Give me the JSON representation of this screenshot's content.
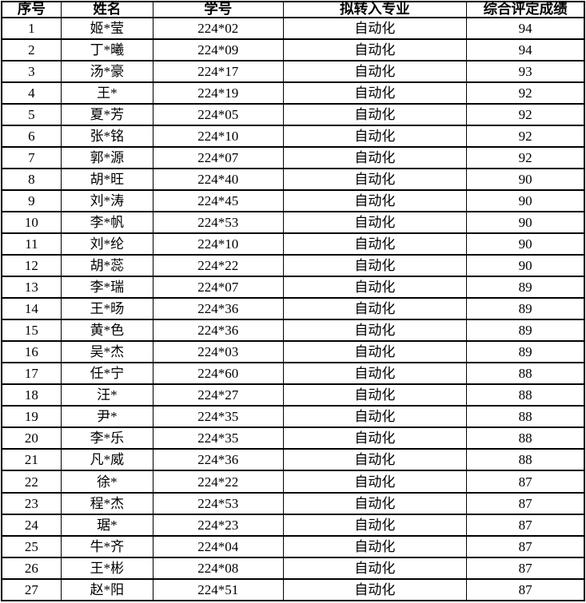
{
  "table": {
    "columns": [
      "序号",
      "姓名",
      "学号",
      "拟转入专业",
      "综合评定成绩"
    ],
    "rows": [
      [
        "1",
        "姬*莹",
        "224*02",
        "自动化",
        "94"
      ],
      [
        "2",
        "丁*曦",
        "224*09",
        "自动化",
        "94"
      ],
      [
        "3",
        "汤*豪",
        "224*17",
        "自动化",
        "93"
      ],
      [
        "4",
        "王*",
        "224*19",
        "自动化",
        "92"
      ],
      [
        "5",
        "夏*芳",
        "224*05",
        "自动化",
        "92"
      ],
      [
        "6",
        "张*铭",
        "224*10",
        "自动化",
        "92"
      ],
      [
        "7",
        "郭*源",
        "224*07",
        "自动化",
        "92"
      ],
      [
        "8",
        "胡*旺",
        "224*40",
        "自动化",
        "90"
      ],
      [
        "9",
        "刘*涛",
        "224*45",
        "自动化",
        "90"
      ],
      [
        "10",
        "李*帆",
        "224*53",
        "自动化",
        "90"
      ],
      [
        "11",
        "刘*纶",
        "224*10",
        "自动化",
        "90"
      ],
      [
        "12",
        "胡*蕊",
        "224*22",
        "自动化",
        "90"
      ],
      [
        "13",
        "李*瑞",
        "224*07",
        "自动化",
        "89"
      ],
      [
        "14",
        "王*旸",
        "224*36",
        "自动化",
        "89"
      ],
      [
        "15",
        "黄*色",
        "224*36",
        "自动化",
        "89"
      ],
      [
        "16",
        "吴*杰",
        "224*03",
        "自动化",
        "89"
      ],
      [
        "17",
        "任*宁",
        "224*60",
        "自动化",
        "88"
      ],
      [
        "18",
        "汪*",
        "224*27",
        "自动化",
        "88"
      ],
      [
        "19",
        "尹*",
        "224*35",
        "自动化",
        "88"
      ],
      [
        "20",
        "李*乐",
        "224*35",
        "自动化",
        "88"
      ],
      [
        "21",
        "凡*威",
        "224*36",
        "自动化",
        "88"
      ],
      [
        "22",
        "徐*",
        "224*22",
        "自动化",
        "87"
      ],
      [
        "23",
        "程*杰",
        "224*53",
        "自动化",
        "87"
      ],
      [
        "24",
        "琚*",
        "224*23",
        "自动化",
        "87"
      ],
      [
        "25",
        "牛*齐",
        "224*04",
        "自动化",
        "87"
      ],
      [
        "26",
        "王*彬",
        "224*08",
        "自动化",
        "87"
      ],
      [
        "27",
        "赵*阳",
        "224*51",
        "自动化",
        "87"
      ]
    ]
  },
  "colors": {
    "border": "#000000",
    "text": "#000000",
    "background": "#ffffff"
  }
}
